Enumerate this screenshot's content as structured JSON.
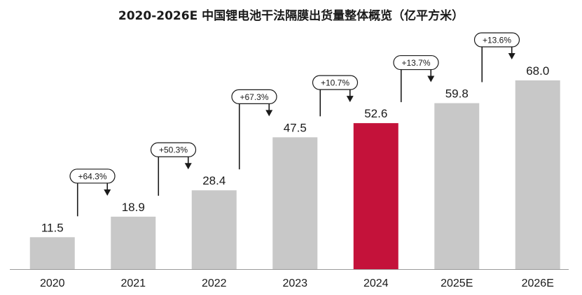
{
  "chart_data": {
    "type": "bar",
    "title": "2020-2026E 中国锂电池干法隔膜出货量整体概览（亿平方米）",
    "categories": [
      "2020",
      "2021",
      "2022",
      "2023",
      "2024",
      "2025E",
      "2026E"
    ],
    "values": [
      11.5,
      18.9,
      28.4,
      47.5,
      52.6,
      59.8,
      68.0
    ],
    "value_labels": [
      "11.5",
      "18.9",
      "28.4",
      "47.5",
      "52.6",
      "59.8",
      "68.0"
    ],
    "growth_labels": [
      "+64.3%",
      "+50.3%",
      "+67.3%",
      "+10.7%",
      "+13.7%",
      "+13.6%"
    ],
    "highlight_index": 4,
    "ylim": [
      0,
      68.0
    ],
    "grid": false,
    "colors": {
      "bar": "#c8c8c8",
      "highlight": "#c4123a",
      "text": "#1a1a1a"
    }
  }
}
